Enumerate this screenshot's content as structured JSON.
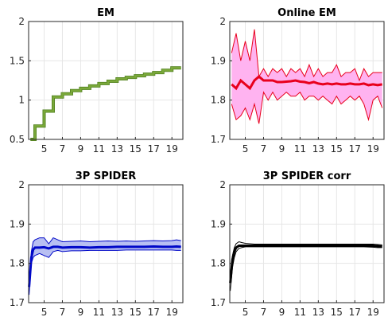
{
  "chart_data": [
    {
      "type": "line",
      "title": "EM",
      "xlabel": "",
      "ylabel": "",
      "xlim": [
        3.3,
        20.2
      ],
      "ylim": [
        0.5,
        2
      ],
      "xticks": [
        5,
        7,
        9,
        11,
        13,
        15,
        17,
        19
      ],
      "yticks": [
        0.5,
        1,
        1.5,
        2
      ],
      "ytick_labels": [
        "0.5",
        "1",
        "1.5",
        "2"
      ],
      "grid": true,
      "colors": {
        "line": "#7aa83a",
        "edge": "#4e7f1c"
      },
      "x": [
        3.5,
        4.0,
        4.0,
        5.0,
        5.0,
        6.0,
        6.0,
        7.0,
        7.0,
        8.0,
        8.0,
        9.0,
        9.0,
        10.0,
        10.0,
        11.0,
        11.0,
        12.0,
        12.0,
        13.0,
        13.0,
        14.0,
        14.0,
        15.0,
        15.0,
        16.0,
        16.0,
        17.0,
        17.0,
        18.0,
        18.0,
        19.0,
        19.0,
        20.0
      ],
      "y": [
        0.5,
        0.5,
        0.67,
        0.67,
        0.86,
        0.86,
        1.04,
        1.04,
        1.08,
        1.08,
        1.12,
        1.12,
        1.15,
        1.15,
        1.18,
        1.18,
        1.21,
        1.21,
        1.24,
        1.24,
        1.27,
        1.27,
        1.29,
        1.29,
        1.31,
        1.31,
        1.33,
        1.33,
        1.35,
        1.35,
        1.38,
        1.38,
        1.41,
        1.41
      ]
    },
    {
      "type": "line",
      "title": "Online EM",
      "xlabel": "",
      "ylabel": "",
      "xlim": [
        3.3,
        20.2
      ],
      "ylim": [
        1.7,
        2
      ],
      "xticks": [
        5,
        7,
        9,
        11,
        13,
        15,
        17,
        19
      ],
      "yticks": [
        1.7,
        1.8,
        1.9,
        2
      ],
      "ytick_labels": [
        "1.7",
        "1.8",
        "1.9",
        "2"
      ],
      "grid": true,
      "colors": {
        "band": "#ffb3f0",
        "line": "#e8001c"
      },
      "x": [
        3.5,
        4.0,
        4.5,
        5.0,
        5.5,
        6.0,
        6.5,
        7.0,
        7.5,
        8.0,
        8.5,
        9.0,
        9.5,
        10.0,
        10.5,
        11.0,
        11.5,
        12.0,
        12.5,
        13.0,
        13.5,
        14.0,
        14.5,
        15.0,
        15.5,
        16.0,
        16.5,
        17.0,
        17.5,
        18.0,
        18.5,
        19.0,
        19.5,
        20.0
      ],
      "series": [
        {
          "role": "upper",
          "values": [
            1.92,
            1.97,
            1.9,
            1.95,
            1.9,
            1.98,
            1.86,
            1.88,
            1.86,
            1.88,
            1.87,
            1.88,
            1.86,
            1.88,
            1.87,
            1.88,
            1.86,
            1.89,
            1.86,
            1.88,
            1.86,
            1.87,
            1.87,
            1.89,
            1.86,
            1.87,
            1.87,
            1.88,
            1.85,
            1.88,
            1.86,
            1.87,
            1.87,
            1.87
          ]
        },
        {
          "role": "center",
          "values": [
            1.84,
            1.83,
            1.85,
            1.84,
            1.83,
            1.85,
            1.86,
            1.85,
            1.85,
            1.85,
            1.846,
            1.846,
            1.847,
            1.848,
            1.85,
            1.847,
            1.846,
            1.843,
            1.846,
            1.842,
            1.84,
            1.842,
            1.84,
            1.842,
            1.84,
            1.84,
            1.842,
            1.84,
            1.84,
            1.842,
            1.838,
            1.84,
            1.838,
            1.84
          ]
        },
        {
          "role": "lower",
          "values": [
            1.79,
            1.75,
            1.76,
            1.78,
            1.75,
            1.79,
            1.74,
            1.82,
            1.8,
            1.82,
            1.8,
            1.81,
            1.82,
            1.81,
            1.81,
            1.82,
            1.8,
            1.81,
            1.81,
            1.8,
            1.81,
            1.8,
            1.79,
            1.81,
            1.79,
            1.8,
            1.81,
            1.8,
            1.81,
            1.79,
            1.75,
            1.8,
            1.81,
            1.78
          ]
        }
      ]
    },
    {
      "type": "line",
      "title": "3P SPIDER",
      "xlabel": "",
      "ylabel": "",
      "xlim": [
        3.3,
        20.2
      ],
      "ylim": [
        1.7,
        2
      ],
      "xticks": [
        5,
        7,
        9,
        11,
        13,
        15,
        17,
        19
      ],
      "yticks": [
        1.7,
        1.8,
        1.9,
        2
      ],
      "ytick_labels": [
        "1.7",
        "1.8",
        "1.9",
        "2"
      ],
      "grid": true,
      "colors": {
        "band": "#b8bff2",
        "line": "#0008c8"
      },
      "x": [
        3.35,
        3.6,
        3.8,
        4.0,
        4.5,
        5.0,
        5.5,
        6.0,
        6.5,
        7.0,
        8.0,
        9.0,
        10.0,
        11.0,
        12.0,
        13.0,
        14.0,
        15.0,
        16.0,
        17.0,
        18.0,
        19.0,
        19.5,
        20.0
      ],
      "series": [
        {
          "role": "upper",
          "values": [
            1.76,
            1.83,
            1.855,
            1.86,
            1.865,
            1.865,
            1.85,
            1.865,
            1.86,
            1.855,
            1.856,
            1.857,
            1.855,
            1.856,
            1.857,
            1.856,
            1.857,
            1.856,
            1.857,
            1.858,
            1.857,
            1.858,
            1.86,
            1.858
          ]
        },
        {
          "role": "center",
          "values": [
            1.74,
            1.815,
            1.835,
            1.84,
            1.84,
            1.841,
            1.838,
            1.842,
            1.842,
            1.84,
            1.841,
            1.841,
            1.84,
            1.841,
            1.841,
            1.842,
            1.842,
            1.842,
            1.842,
            1.843,
            1.842,
            1.842,
            1.843,
            1.842
          ]
        },
        {
          "role": "lower",
          "values": [
            1.72,
            1.8,
            1.815,
            1.82,
            1.825,
            1.82,
            1.815,
            1.83,
            1.833,
            1.83,
            1.832,
            1.832,
            1.833,
            1.833,
            1.833,
            1.833,
            1.834,
            1.834,
            1.834,
            1.834,
            1.834,
            1.834,
            1.833,
            1.833
          ]
        }
      ]
    },
    {
      "type": "line",
      "title": "3P SPIDER corr",
      "xlabel": "",
      "ylabel": "",
      "xlim": [
        3.3,
        20.2
      ],
      "ylim": [
        1.7,
        2
      ],
      "xticks": [
        5,
        7,
        9,
        11,
        13,
        15,
        17,
        19
      ],
      "yticks": [
        1.7,
        1.8,
        1.9,
        2
      ],
      "ytick_labels": [
        "1.7",
        "1.8",
        "1.9",
        "2"
      ],
      "grid": true,
      "colors": {
        "line": "#000000"
      },
      "x": [
        3.35,
        3.6,
        3.8,
        4.0,
        4.3,
        4.6,
        5.0,
        5.5,
        6.0,
        7.0,
        8.0,
        9.0,
        10.0,
        11.0,
        12.0,
        13.0,
        14.0,
        15.0,
        16.0,
        17.0,
        18.0,
        19.0,
        19.5,
        20.0
      ],
      "series": [
        {
          "role": "upper",
          "values": [
            1.77,
            1.82,
            1.84,
            1.85,
            1.855,
            1.853,
            1.851,
            1.85,
            1.849,
            1.849,
            1.849,
            1.849,
            1.849,
            1.849,
            1.849,
            1.849,
            1.849,
            1.849,
            1.849,
            1.849,
            1.849,
            1.849,
            1.848,
            1.847
          ]
        },
        {
          "role": "center",
          "values": [
            1.75,
            1.81,
            1.83,
            1.84,
            1.845,
            1.845,
            1.845,
            1.845,
            1.845,
            1.845,
            1.845,
            1.845,
            1.845,
            1.845,
            1.845,
            1.845,
            1.845,
            1.845,
            1.845,
            1.845,
            1.845,
            1.845,
            1.844,
            1.843
          ]
        },
        {
          "role": "lower",
          "values": [
            1.73,
            1.79,
            1.815,
            1.83,
            1.838,
            1.84,
            1.842,
            1.842,
            1.842,
            1.842,
            1.842,
            1.842,
            1.842,
            1.842,
            1.842,
            1.842,
            1.842,
            1.842,
            1.842,
            1.842,
            1.842,
            1.841,
            1.84,
            1.84
          ]
        }
      ]
    }
  ]
}
